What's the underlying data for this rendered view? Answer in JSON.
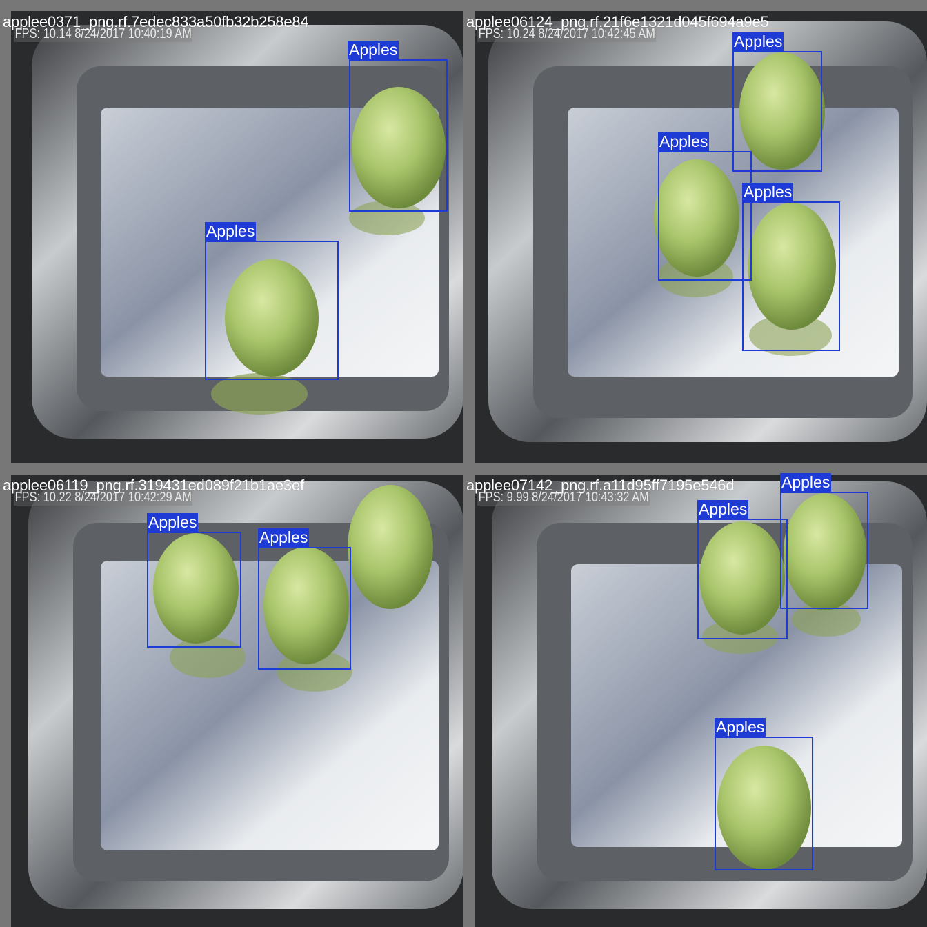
{
  "tiles": [
    {
      "filename": "applee0371_png.rf.7edec833a50fb32b258e84",
      "overlay": "FPS: 10.14 8/24/2017 10:40:19 AM",
      "detections": [
        {
          "label": "Apples"
        },
        {
          "label": "Apples"
        }
      ]
    },
    {
      "filename": "applee06124_png.rf.21f6e1321d045f694a9e5",
      "overlay": "FPS: 10.24 8/24/2017 10:42:45 AM",
      "detections": [
        {
          "label": "Apples"
        },
        {
          "label": "Apples"
        },
        {
          "label": "Apples"
        }
      ]
    },
    {
      "filename": "applee06119_png.rf.319431ed089f21b1ae3ef",
      "overlay": "FPS: 10.22 8/24/2017 10:42:29 AM",
      "detections": [
        {
          "label": "Apples"
        },
        {
          "label": "Apples"
        }
      ]
    },
    {
      "filename": "applee07142_png.rf.a11d95ff7195e546d",
      "overlay": "FPS: 9.99 8/24/2017 10:43:32 AM",
      "detections": [
        {
          "label": "Apples"
        },
        {
          "label": "Apples"
        },
        {
          "label": "Apples"
        }
      ]
    }
  ],
  "colors": {
    "box": "#1f3bd6",
    "apple": "#a8c46a",
    "tray": "#8c8f93"
  }
}
